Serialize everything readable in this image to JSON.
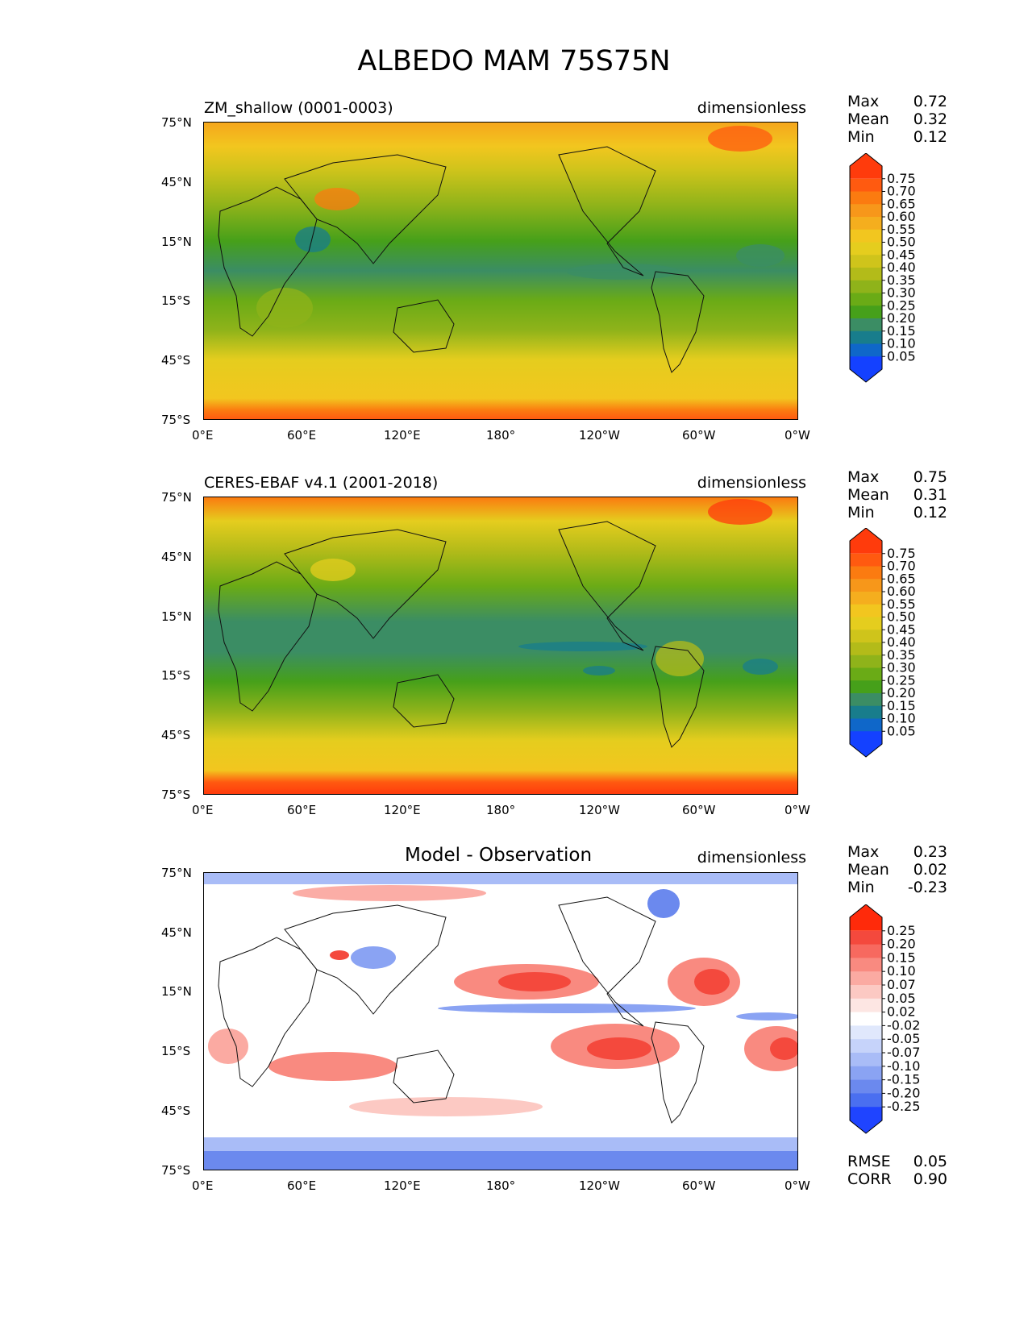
{
  "title": "ALBEDO MAM 75S75N",
  "x_ticks": [
    "0°E",
    "60°E",
    "120°E",
    "180°",
    "120°W",
    "60°W",
    "0°W"
  ],
  "y_ticks": [
    "75°N",
    "45°N",
    "15°N",
    "15°S",
    "45°S",
    "75°S"
  ],
  "panels": [
    {
      "id": "model",
      "title": "ZM_shallow (0001-0003)",
      "units": "dimensionless",
      "stats": {
        "labels": [
          "Max",
          "Mean",
          "Min"
        ],
        "values": [
          "0.72",
          "0.32",
          "0.12"
        ]
      },
      "colorbar": {
        "labels": [
          "0.75",
          "0.70",
          "0.65",
          "0.60",
          "0.55",
          "0.50",
          "0.45",
          "0.40",
          "0.35",
          "0.30",
          "0.25",
          "0.20",
          "0.15",
          "0.10",
          "0.05"
        ],
        "colors": [
          "#ff3b0c",
          "#ff5a10",
          "#fb7b10",
          "#f7971a",
          "#f5ae1e",
          "#f2c61f",
          "#e5cd1e",
          "#cfc41b",
          "#b3bb19",
          "#8fb31a",
          "#6aab16",
          "#46a01a",
          "#3b8d64",
          "#187d8c",
          "#0f67c9",
          "#1441ff"
        ]
      }
    },
    {
      "id": "obs",
      "title": "CERES-EBAF v4.1 (2001-2018)",
      "units": "dimensionless",
      "stats": {
        "labels": [
          "Max",
          "Mean",
          "Min"
        ],
        "values": [
          "0.75",
          "0.31",
          "0.12"
        ]
      },
      "colorbar": {
        "labels": [
          "0.75",
          "0.70",
          "0.65",
          "0.60",
          "0.55",
          "0.50",
          "0.45",
          "0.40",
          "0.35",
          "0.30",
          "0.25",
          "0.20",
          "0.15",
          "0.10",
          "0.05"
        ],
        "colors": [
          "#ff3b0c",
          "#ff5a10",
          "#fb7b10",
          "#f7971a",
          "#f5ae1e",
          "#f2c61f",
          "#e5cd1e",
          "#cfc41b",
          "#b3bb19",
          "#8fb31a",
          "#6aab16",
          "#46a01a",
          "#3b8d64",
          "#187d8c",
          "#0f67c9",
          "#1441ff"
        ]
      }
    },
    {
      "id": "diff",
      "title": "Model - Observation",
      "units": "dimensionless",
      "stats": {
        "labels": [
          "Max",
          "Mean",
          "Min"
        ],
        "values": [
          "0.23",
          "0.02",
          "-0.23"
        ]
      },
      "colorbar": {
        "labels": [
          "0.25",
          "0.20",
          "0.15",
          "0.10",
          "0.07",
          "0.05",
          "0.02",
          "-0.02",
          "-0.05",
          "-0.07",
          "-0.10",
          "-0.15",
          "-0.20",
          "-0.25"
        ],
        "colors": [
          "#ff2a0a",
          "#f4493d",
          "#f7695f",
          "#f98a80",
          "#fbaaa2",
          "#fcc9c3",
          "#fde6e3",
          "#ffffff",
          "#e0e8fc",
          "#c6d3fa",
          "#a9bcf7",
          "#8aa3f3",
          "#6b89ee",
          "#4a6ff0",
          "#1f44ff"
        ]
      },
      "extra_stats": {
        "labels": [
          "RMSE",
          "CORR"
        ],
        "values": [
          "0.05",
          "0.90"
        ]
      }
    }
  ]
}
